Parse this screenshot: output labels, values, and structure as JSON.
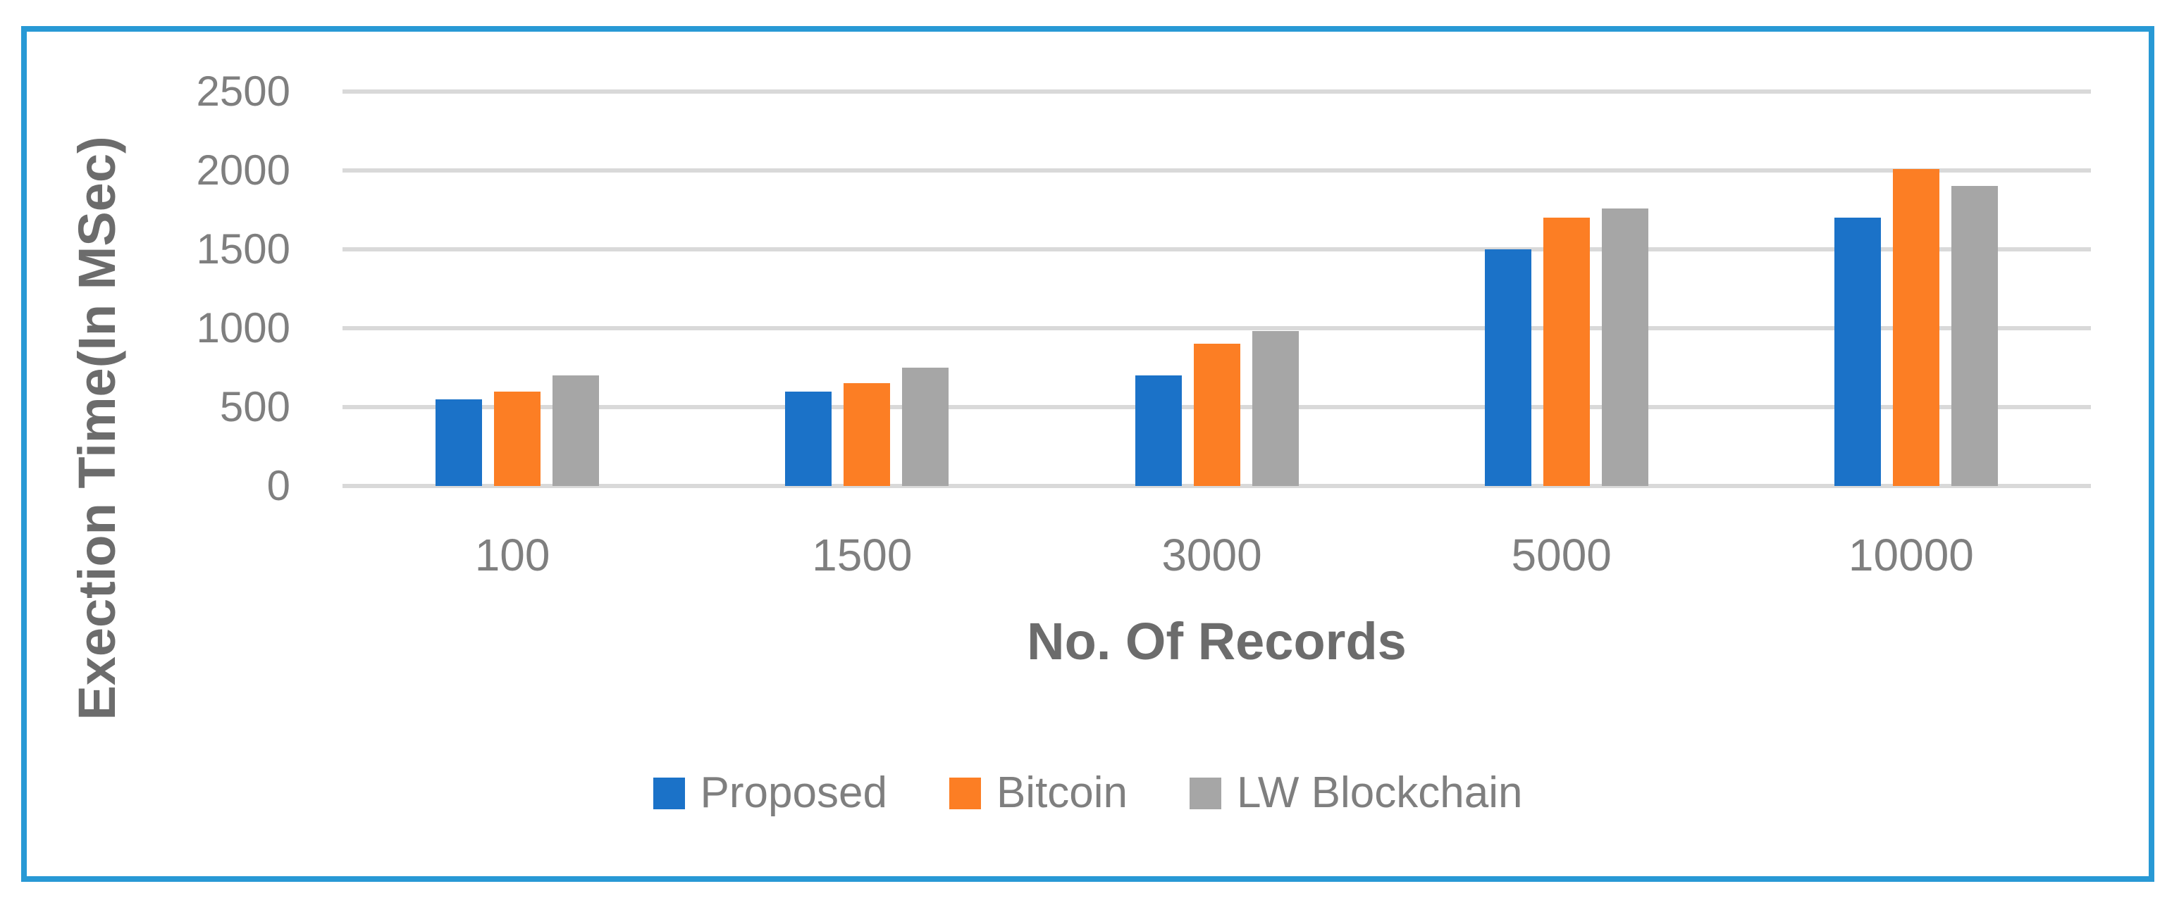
{
  "frame": {
    "border_color": "#2899d5",
    "background": "#ffffff"
  },
  "chart_data": {
    "type": "bar",
    "title": "",
    "categories": [
      "100",
      "1500",
      "3000",
      "5000",
      "10000"
    ],
    "series": [
      {
        "name": "Proposed",
        "color": "#1b72c8",
        "values": [
          550,
          600,
          700,
          1500,
          1700
        ]
      },
      {
        "name": "Bitcoin",
        "color": "#fc7e24",
        "values": [
          600,
          650,
          900,
          1700,
          2010
        ]
      },
      {
        "name": "LW Blockchain",
        "color": "#a6a6a6",
        "values": [
          700,
          750,
          980,
          1760,
          1900
        ]
      }
    ],
    "xlabel": "No. Of Records",
    "ylabel": "Exection Time(In MSec)",
    "ylim": [
      0,
      2500
    ],
    "yticks": [
      0,
      500,
      1000,
      1500,
      2000,
      2500
    ],
    "ytick_labels": [
      "0",
      "500",
      "1000",
      "1500",
      "2000",
      "2500"
    ],
    "grid": true,
    "gridline_color": "#d9d9d9",
    "legend_position": "bottom",
    "text_color": "#7f7f7f",
    "title_color": "#6c6c6c"
  }
}
